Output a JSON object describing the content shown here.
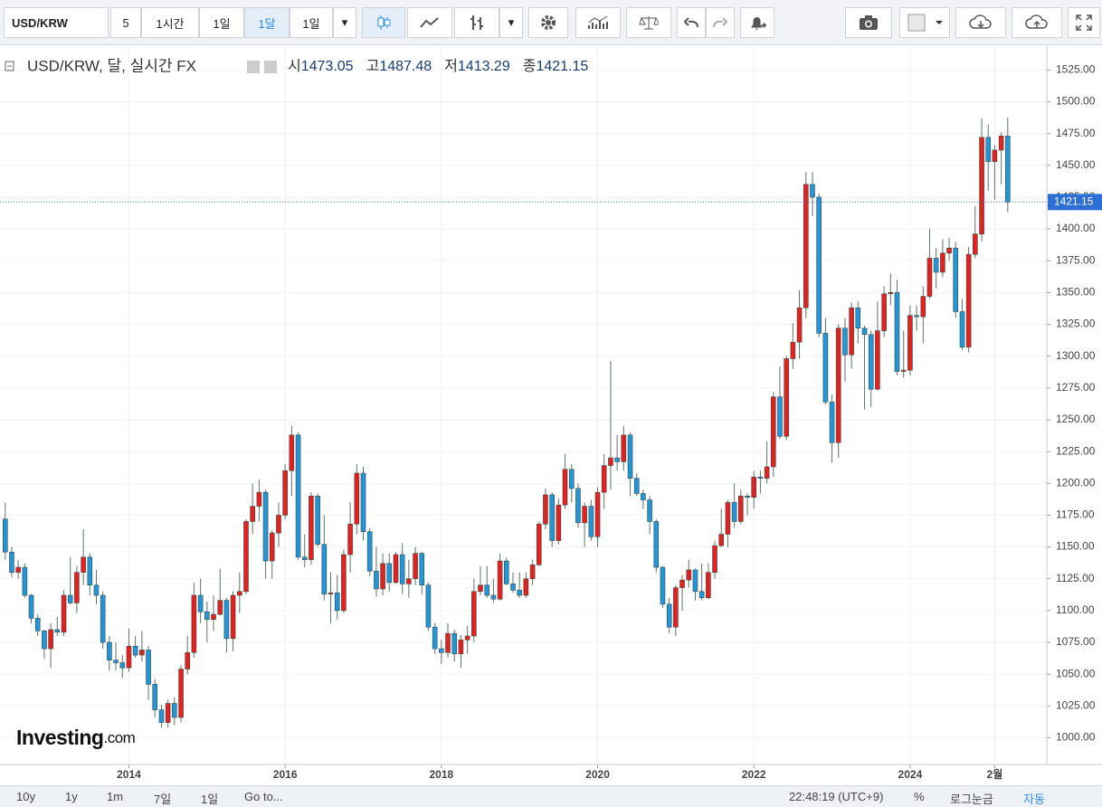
{
  "toolbar": {
    "symbol": "USD/KRW",
    "interval_buttons": [
      "5",
      "1시간",
      "1일",
      "1달",
      "1일"
    ],
    "active": 3
  },
  "bottom_bar": {
    "ranges": [
      "10y",
      "1y",
      "1m",
      "7일",
      "1일"
    ],
    "goto": "Go to...",
    "time": "22:48:19 (UTC+9)",
    "options": [
      "%",
      "로그눈금",
      "자동"
    ],
    "active_option": 2
  },
  "watermark": {
    "brand": "Investing",
    "suffix": ".com"
  },
  "chart_data": {
    "type": "candlestick",
    "title": "USD/KRW, 달, 실시간 FX",
    "ohlc_labels": [
      "시",
      "고",
      "저",
      "종"
    ],
    "up_color": "#e5201f",
    "down_color": "#2196d8",
    "wick_color": "#5b7466",
    "xlim": [
      2012.35,
      2025.75
    ],
    "xticks": [
      2014,
      2016,
      2018,
      2020,
      2022,
      2024,
      {
        "value": 2025.083,
        "label": "2월"
      }
    ],
    "ylim": [
      979,
      1543
    ],
    "yticks": [
      {
        "value": 1000,
        "label": "1000.00"
      },
      {
        "value": 1025,
        "label": "1025.00"
      },
      {
        "value": 1050,
        "label": "1050.00"
      },
      {
        "value": 1075,
        "label": "1075.00"
      },
      {
        "value": 1100,
        "label": "1100.00"
      },
      {
        "value": 1125,
        "label": "1125.00"
      },
      {
        "value": 1150,
        "label": "1150.00"
      },
      {
        "value": 1175,
        "label": "1175.00"
      },
      {
        "value": 1200,
        "label": "1200.00"
      },
      {
        "value": 1225,
        "label": "1225.00"
      },
      {
        "value": 1250,
        "label": "1250.00"
      },
      {
        "value": 1275,
        "label": "1275.00"
      },
      {
        "value": 1300,
        "label": "1300.00"
      },
      {
        "value": 1325,
        "label": "1325.00"
      },
      {
        "value": 1350,
        "label": "1350.00"
      },
      {
        "value": 1375,
        "label": "1375.00"
      },
      {
        "value": 1400,
        "label": "1400.00"
      },
      {
        "value": 1425,
        "label": "1425.00"
      },
      {
        "value": 1450,
        "label": "1450.00"
      },
      {
        "value": 1475,
        "label": "1475.00"
      },
      {
        "value": 1500,
        "label": "1500.00"
      },
      {
        "value": 1525,
        "label": "1525.00"
      }
    ],
    "grid": true,
    "x": [
      2012.417,
      2012.5,
      2012.583,
      2012.667,
      2012.75,
      2012.833,
      2012.917,
      2013,
      2013.083,
      2013.167,
      2013.25,
      2013.333,
      2013.417,
      2013.5,
      2013.583,
      2013.667,
      2013.75,
      2013.833,
      2013.917,
      2014,
      2014.083,
      2014.167,
      2014.25,
      2014.333,
      2014.417,
      2014.5,
      2014.583,
      2014.667,
      2014.75,
      2014.833,
      2014.917,
      2015,
      2015.083,
      2015.167,
      2015.25,
      2015.333,
      2015.417,
      2015.5,
      2015.583,
      2015.667,
      2015.75,
      2015.833,
      2015.917,
      2016,
      2016.083,
      2016.167,
      2016.25,
      2016.333,
      2016.417,
      2016.5,
      2016.583,
      2016.667,
      2016.75,
      2016.833,
      2016.917,
      2017,
      2017.083,
      2017.167,
      2017.25,
      2017.333,
      2017.417,
      2017.5,
      2017.583,
      2017.667,
      2017.75,
      2017.833,
      2017.917,
      2018,
      2018.083,
      2018.167,
      2018.25,
      2018.333,
      2018.417,
      2018.5,
      2018.583,
      2018.667,
      2018.75,
      2018.833,
      2018.917,
      2019,
      2019.083,
      2019.167,
      2019.25,
      2019.333,
      2019.417,
      2019.5,
      2019.583,
      2019.667,
      2019.75,
      2019.833,
      2019.917,
      2020,
      2020.083,
      2020.167,
      2020.25,
      2020.333,
      2020.417,
      2020.5,
      2020.583,
      2020.667,
      2020.75,
      2020.833,
      2020.917,
      2021,
      2021.083,
      2021.167,
      2021.25,
      2021.333,
      2021.417,
      2021.5,
      2021.583,
      2021.667,
      2021.75,
      2021.833,
      2021.917,
      2022,
      2022.083,
      2022.167,
      2022.25,
      2022.333,
      2022.417,
      2022.5,
      2022.583,
      2022.667,
      2022.75,
      2022.833,
      2022.917,
      2023,
      2023.083,
      2023.167,
      2023.25,
      2023.333,
      2023.417,
      2023.5,
      2023.583,
      2023.667,
      2023.75,
      2023.833,
      2023.917,
      2024,
      2024.083,
      2024.167,
      2024.25,
      2024.333,
      2024.417,
      2024.5,
      2024.583,
      2024.667,
      2024.75,
      2024.833,
      2024.917,
      2025,
      2025.083,
      2025.167,
      2025.25
    ],
    "ohlc": [
      [
        1172,
        1185,
        1140,
        1146
      ],
      [
        1146,
        1150,
        1126,
        1130
      ],
      [
        1130,
        1140,
        1125,
        1134
      ],
      [
        1134,
        1137,
        1110,
        1112
      ],
      [
        1112,
        1113,
        1090,
        1094
      ],
      [
        1094,
        1097,
        1080,
        1084
      ],
      [
        1084,
        1085,
        1062,
        1070
      ],
      [
        1070,
        1090,
        1055,
        1085
      ],
      [
        1085,
        1095,
        1080,
        1083
      ],
      [
        1083,
        1116,
        1080,
        1112
      ],
      [
        1112,
        1142,
        1105,
        1106
      ],
      [
        1106,
        1135,
        1098,
        1130
      ],
      [
        1130,
        1164,
        1120,
        1142
      ],
      [
        1142,
        1145,
        1112,
        1120
      ],
      [
        1120,
        1132,
        1105,
        1112
      ],
      [
        1112,
        1115,
        1070,
        1075
      ],
      [
        1075,
        1080,
        1053,
        1061
      ],
      [
        1061,
        1075,
        1053,
        1059
      ],
      [
        1059,
        1065,
        1047,
        1055
      ],
      [
        1055,
        1086,
        1052,
        1072
      ],
      [
        1072,
        1080,
        1063,
        1065
      ],
      [
        1065,
        1084,
        1060,
        1069
      ],
      [
        1069,
        1072,
        1030,
        1042
      ],
      [
        1042,
        1046,
        1016,
        1022
      ],
      [
        1022,
        1026,
        1008,
        1012
      ],
      [
        1012,
        1030,
        1008,
        1027
      ],
      [
        1027,
        1032,
        1010,
        1016
      ],
      [
        1016,
        1057,
        1012,
        1054
      ],
      [
        1054,
        1080,
        1050,
        1067
      ],
      [
        1067,
        1122,
        1063,
        1112
      ],
      [
        1112,
        1125,
        1090,
        1099
      ],
      [
        1099,
        1107,
        1075,
        1093
      ],
      [
        1093,
        1112,
        1084,
        1097
      ],
      [
        1097,
        1133,
        1096,
        1108
      ],
      [
        1108,
        1110,
        1067,
        1078
      ],
      [
        1078,
        1115,
        1068,
        1112
      ],
      [
        1112,
        1130,
        1098,
        1115
      ],
      [
        1115,
        1172,
        1113,
        1170
      ],
      [
        1170,
        1200,
        1160,
        1182
      ],
      [
        1182,
        1203,
        1170,
        1193
      ],
      [
        1193,
        1195,
        1125,
        1139
      ],
      [
        1139,
        1163,
        1125,
        1161
      ],
      [
        1161,
        1185,
        1150,
        1175
      ],
      [
        1175,
        1215,
        1172,
        1210
      ],
      [
        1210,
        1245,
        1190,
        1238
      ],
      [
        1238,
        1240,
        1140,
        1142
      ],
      [
        1142,
        1160,
        1134,
        1140
      ],
      [
        1140,
        1193,
        1136,
        1190
      ],
      [
        1190,
        1192,
        1150,
        1152
      ],
      [
        1152,
        1175,
        1108,
        1113
      ],
      [
        1113,
        1130,
        1090,
        1114
      ],
      [
        1114,
        1128,
        1093,
        1100
      ],
      [
        1100,
        1148,
        1098,
        1144
      ],
      [
        1144,
        1185,
        1130,
        1168
      ],
      [
        1168,
        1215,
        1160,
        1208
      ],
      [
        1208,
        1213,
        1155,
        1162
      ],
      [
        1162,
        1165,
        1127,
        1131
      ],
      [
        1131,
        1150,
        1111,
        1117
      ],
      [
        1117,
        1145,
        1112,
        1137
      ],
      [
        1137,
        1145,
        1115,
        1122
      ],
      [
        1122,
        1146,
        1121,
        1144
      ],
      [
        1144,
        1153,
        1113,
        1121
      ],
      [
        1121,
        1140,
        1110,
        1125
      ],
      [
        1125,
        1150,
        1120,
        1145
      ],
      [
        1145,
        1146,
        1113,
        1120
      ],
      [
        1120,
        1122,
        1084,
        1087
      ],
      [
        1087,
        1090,
        1066,
        1070
      ],
      [
        1070,
        1077,
        1058,
        1067
      ],
      [
        1067,
        1090,
        1063,
        1082
      ],
      [
        1082,
        1085,
        1060,
        1066
      ],
      [
        1066,
        1081,
        1055,
        1077
      ],
      [
        1077,
        1088,
        1066,
        1080
      ],
      [
        1080,
        1125,
        1075,
        1115
      ],
      [
        1115,
        1135,
        1112,
        1120
      ],
      [
        1120,
        1135,
        1110,
        1112
      ],
      [
        1112,
        1125,
        1106,
        1109
      ],
      [
        1109,
        1145,
        1108,
        1139
      ],
      [
        1139,
        1142,
        1120,
        1121
      ],
      [
        1121,
        1130,
        1114,
        1116
      ],
      [
        1116,
        1130,
        1110,
        1112
      ],
      [
        1112,
        1130,
        1110,
        1125
      ],
      [
        1125,
        1140,
        1120,
        1136
      ],
      [
        1136,
        1170,
        1135,
        1168
      ],
      [
        1168,
        1196,
        1164,
        1191
      ],
      [
        1191,
        1193,
        1150,
        1155
      ],
      [
        1155,
        1188,
        1152,
        1183
      ],
      [
        1183,
        1223,
        1180,
        1211
      ],
      [
        1211,
        1215,
        1185,
        1196
      ],
      [
        1196,
        1200,
        1165,
        1169
      ],
      [
        1169,
        1185,
        1150,
        1182
      ],
      [
        1182,
        1187,
        1155,
        1158
      ],
      [
        1158,
        1197,
        1150,
        1193
      ],
      [
        1193,
        1223,
        1180,
        1214
      ],
      [
        1214,
        1296,
        1195,
        1220
      ],
      [
        1220,
        1238,
        1210,
        1217
      ],
      [
        1217,
        1245,
        1210,
        1238
      ],
      [
        1238,
        1240,
        1190,
        1204
      ],
      [
        1204,
        1208,
        1190,
        1192
      ],
      [
        1192,
        1195,
        1180,
        1187
      ],
      [
        1187,
        1190,
        1160,
        1170
      ],
      [
        1170,
        1172,
        1130,
        1134
      ],
      [
        1134,
        1135,
        1102,
        1105
      ],
      [
        1105,
        1110,
        1082,
        1087
      ],
      [
        1087,
        1120,
        1080,
        1118
      ],
      [
        1118,
        1128,
        1100,
        1124
      ],
      [
        1124,
        1140,
        1118,
        1132
      ],
      [
        1132,
        1133,
        1108,
        1115
      ],
      [
        1115,
        1137,
        1108,
        1110
      ],
      [
        1110,
        1137,
        1109,
        1130
      ],
      [
        1130,
        1155,
        1125,
        1151
      ],
      [
        1151,
        1180,
        1150,
        1160
      ],
      [
        1160,
        1187,
        1150,
        1185
      ],
      [
        1185,
        1200,
        1165,
        1170
      ],
      [
        1170,
        1195,
        1168,
        1190
      ],
      [
        1190,
        1192,
        1175,
        1189
      ],
      [
        1189,
        1210,
        1180,
        1205
      ],
      [
        1205,
        1210,
        1192,
        1204
      ],
      [
        1204,
        1233,
        1200,
        1213
      ],
      [
        1213,
        1272,
        1205,
        1268
      ],
      [
        1268,
        1292,
        1235,
        1237
      ],
      [
        1237,
        1300,
        1234,
        1298
      ],
      [
        1298,
        1326,
        1290,
        1311
      ],
      [
        1311,
        1352,
        1298,
        1338
      ],
      [
        1338,
        1445,
        1330,
        1435
      ],
      [
        1435,
        1445,
        1410,
        1425
      ],
      [
        1425,
        1428,
        1315,
        1318
      ],
      [
        1318,
        1330,
        1262,
        1264
      ],
      [
        1264,
        1270,
        1216,
        1232
      ],
      [
        1232,
        1325,
        1220,
        1322
      ],
      [
        1322,
        1330,
        1280,
        1301
      ],
      [
        1301,
        1342,
        1290,
        1338
      ],
      [
        1338,
        1343,
        1310,
        1322
      ],
      [
        1322,
        1324,
        1258,
        1317
      ],
      [
        1317,
        1320,
        1260,
        1274
      ],
      [
        1274,
        1343,
        1273,
        1320
      ],
      [
        1320,
        1355,
        1315,
        1349
      ],
      [
        1349,
        1365,
        1340,
        1350
      ],
      [
        1350,
        1360,
        1285,
        1288
      ],
      [
        1288,
        1320,
        1283,
        1289
      ],
      [
        1289,
        1340,
        1285,
        1332
      ],
      [
        1332,
        1340,
        1320,
        1331
      ],
      [
        1331,
        1355,
        1310,
        1347
      ],
      [
        1347,
        1400,
        1345,
        1377
      ],
      [
        1377,
        1385,
        1353,
        1366
      ],
      [
        1366,
        1392,
        1362,
        1381
      ],
      [
        1381,
        1393,
        1375,
        1385
      ],
      [
        1385,
        1390,
        1330,
        1335
      ],
      [
        1335,
        1345,
        1305,
        1307
      ],
      [
        1307,
        1386,
        1303,
        1380
      ],
      [
        1380,
        1418,
        1377,
        1396
      ],
      [
        1396,
        1487,
        1390,
        1472
      ],
      [
        1472,
        1482,
        1430,
        1453
      ],
      [
        1453,
        1466,
        1423,
        1462
      ],
      [
        1462,
        1476,
        1435,
        1473.05
      ],
      [
        1473.05,
        1487.48,
        1413.29,
        1421.15
      ]
    ]
  }
}
